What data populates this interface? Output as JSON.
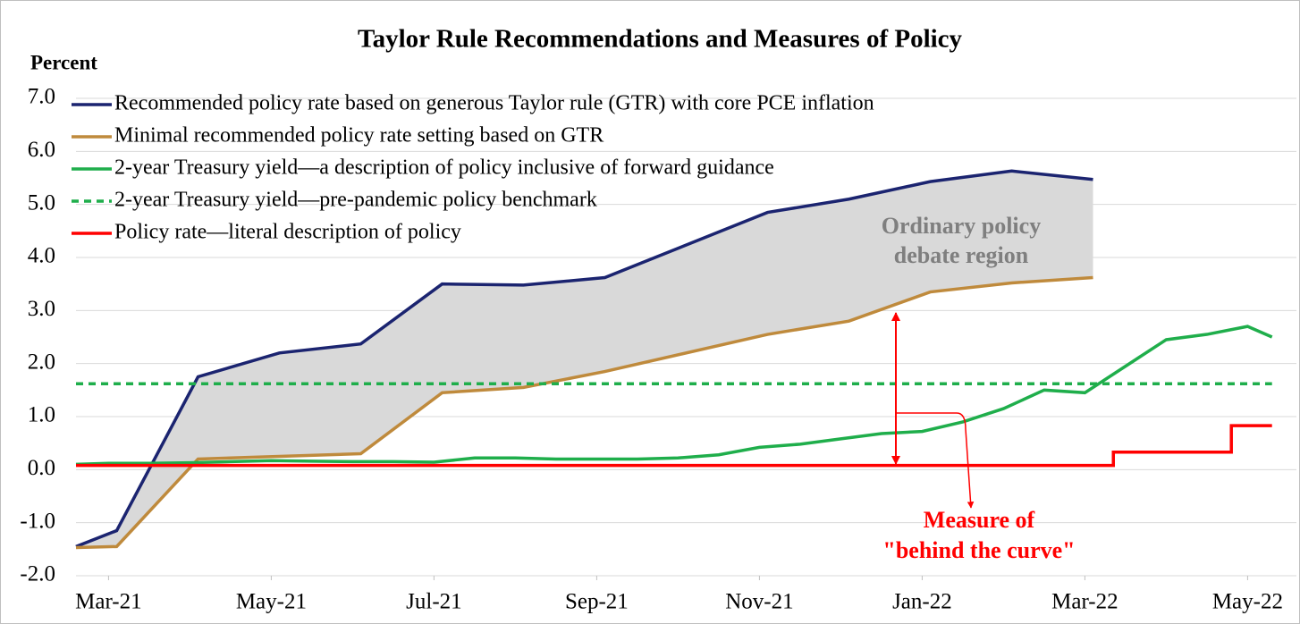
{
  "chart_data": {
    "type": "line",
    "title": "Taylor Rule Recommendations and Measures of Policy",
    "y_label": "Percent",
    "xlim": [
      -0.4,
      14.6
    ],
    "xticks": [
      {
        "value": 0,
        "label": "Mar-21"
      },
      {
        "value": 2,
        "label": "May-21"
      },
      {
        "value": 4,
        "label": "Jul-21"
      },
      {
        "value": 6,
        "label": "Sep-21"
      },
      {
        "value": 8,
        "label": "Nov-21"
      },
      {
        "value": 10,
        "label": "Jan-22"
      },
      {
        "value": 12,
        "label": "Mar-22"
      },
      {
        "value": 14,
        "label": "May-22"
      }
    ],
    "ylim": [
      -2,
      7
    ],
    "yticks": [
      {
        "value": -2,
        "label": "-2.0"
      },
      {
        "value": -1,
        "label": "-1.0"
      },
      {
        "value": 0,
        "label": "0.0"
      },
      {
        "value": 1,
        "label": "1.0"
      },
      {
        "value": 2,
        "label": "2.0"
      },
      {
        "value": 3,
        "label": "3.0"
      },
      {
        "value": 4,
        "label": "4.0"
      },
      {
        "value": 5,
        "label": "5.0"
      },
      {
        "value": 6,
        "label": "6.0"
      },
      {
        "value": 7,
        "label": "7.0"
      }
    ],
    "grid": true,
    "legend": "top-left",
    "fill_between": {
      "series": [
        0,
        1
      ],
      "color": "#d9d9d9"
    },
    "series": [
      {
        "name": "Recommended policy rate based on generous Taylor rule (GTR) with core PCE inflation",
        "color": "#1b2470",
        "x": [
          -0.4,
          0.1,
          1.1,
          2.1,
          3.1,
          4.1,
          5.1,
          6.1,
          8.1,
          9.1,
          10.1,
          11.1,
          12.1
        ],
        "values": [
          -1.45,
          -1.15,
          1.75,
          2.2,
          2.37,
          3.5,
          3.48,
          3.62,
          4.85,
          5.1,
          5.43,
          5.63,
          5.47
        ]
      },
      {
        "name": "Minimal recommended policy rate setting based on GTR",
        "color": "#bf8a3c",
        "x": [
          -0.4,
          0.1,
          1.1,
          2.1,
          3.1,
          4.1,
          5.1,
          6.1,
          8.1,
          9.1,
          10.1,
          11.1,
          12.1
        ],
        "values": [
          -1.47,
          -1.45,
          0.2,
          0.25,
          0.3,
          1.45,
          1.55,
          1.85,
          2.55,
          2.8,
          3.35,
          3.52,
          3.62
        ]
      },
      {
        "name": "2-year Treasury yield—a description of policy inclusive of forward guidance",
        "color": "#1fae4b",
        "x": [
          -0.4,
          0,
          0.5,
          1,
          1.5,
          2,
          2.5,
          3,
          3.5,
          4,
          4.5,
          5,
          5.5,
          6,
          6.5,
          7,
          7.5,
          8,
          8.5,
          9,
          9.5,
          10,
          10.5,
          11,
          11.5,
          12,
          12.5,
          13,
          13.5,
          14,
          14.3
        ],
        "values": [
          0.1,
          0.12,
          0.12,
          0.13,
          0.15,
          0.17,
          0.16,
          0.15,
          0.15,
          0.14,
          0.22,
          0.22,
          0.2,
          0.2,
          0.2,
          0.22,
          0.28,
          0.42,
          0.48,
          0.58,
          0.68,
          0.72,
          0.9,
          1.15,
          1.5,
          1.45,
          1.95,
          2.45,
          2.55,
          2.7,
          2.5
        ]
      },
      {
        "name": "2-year Treasury yield—pre-pandemic policy benchmark",
        "color": "#1fae4b",
        "dashed": true,
        "x": [
          -0.4,
          14.3
        ],
        "values": [
          1.62,
          1.62
        ]
      },
      {
        "name": "Policy rate—literal description of policy",
        "color": "#ff0000",
        "x": [
          -0.4,
          12.35,
          12.35,
          13.8,
          13.8,
          14.3
        ],
        "values": [
          0.08,
          0.08,
          0.33,
          0.33,
          0.83,
          0.83
        ]
      }
    ],
    "annotations": [
      "Ordinary policy",
      "debate region",
      "Measure of",
      "\"behind the curve\""
    ]
  }
}
